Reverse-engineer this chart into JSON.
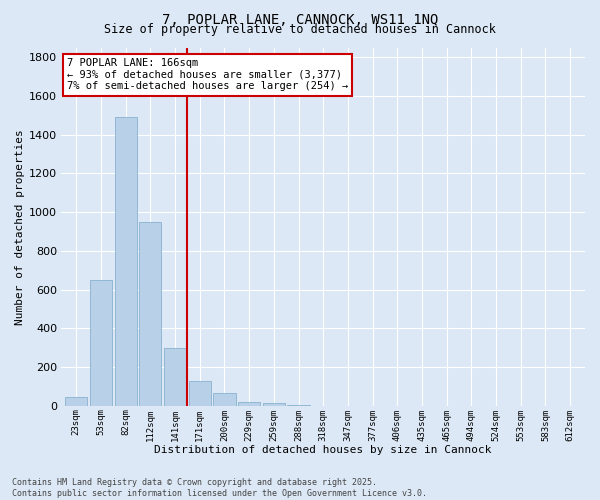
{
  "title": "7, POPLAR LANE, CANNOCK, WS11 1NQ",
  "subtitle": "Size of property relative to detached houses in Cannock",
  "xlabel": "Distribution of detached houses by size in Cannock",
  "ylabel": "Number of detached properties",
  "bar_color": "#b8d0e8",
  "bar_edgecolor": "#7aaaca",
  "background_color": "#dce8f5",
  "grid_color": "#ffffff",
  "categories": [
    "23sqm",
    "53sqm",
    "82sqm",
    "112sqm",
    "141sqm",
    "171sqm",
    "200sqm",
    "229sqm",
    "259sqm",
    "288sqm",
    "318sqm",
    "347sqm",
    "377sqm",
    "406sqm",
    "435sqm",
    "465sqm",
    "494sqm",
    "524sqm",
    "553sqm",
    "583sqm",
    "612sqm"
  ],
  "values": [
    47,
    650,
    1490,
    950,
    300,
    130,
    65,
    22,
    14,
    5,
    0,
    0,
    0,
    0,
    0,
    0,
    0,
    0,
    0,
    0,
    0
  ],
  "ylim": [
    0,
    1850
  ],
  "yticks": [
    0,
    200,
    400,
    600,
    800,
    1000,
    1200,
    1400,
    1600,
    1800
  ],
  "vline_index": 5,
  "vline_color": "#cc0000",
  "annotation_text": "7 POPLAR LANE: 166sqm\n← 93% of detached houses are smaller (3,377)\n7% of semi-detached houses are larger (254) →",
  "annotation_box_facecolor": "#ffffff",
  "annotation_box_edgecolor": "#cc0000",
  "footer_line1": "Contains HM Land Registry data © Crown copyright and database right 2025.",
  "footer_line2": "Contains public sector information licensed under the Open Government Licence v3.0."
}
